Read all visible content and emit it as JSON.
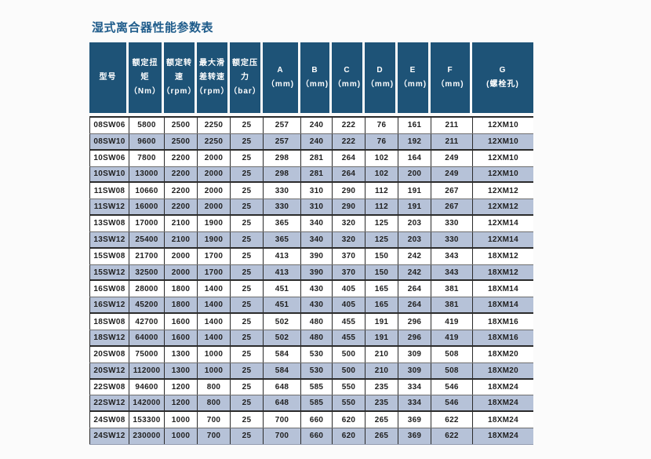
{
  "page": {
    "title": "湿式离合器性能参数表"
  },
  "colors": {
    "title": "#1f5c8b",
    "header-bg": "#1e5377",
    "header-text": "#ffffff",
    "stripe": "#b6c2d8",
    "row-bg": "#ffffff",
    "border-dark": "#2b2b2b",
    "border-light": "#6f6f6f",
    "cell-text": "#1f1f1f",
    "page-bg": "#fbfbfb"
  },
  "chart_data": {
    "type": "table",
    "title": "湿式离合器性能参数表",
    "columns": [
      "型号",
      "额定扭矩（Nm）",
      "额定转速（rpm）",
      "最大滑差转速（rpm）",
      "额定压力（bar）",
      "A（mm)",
      "B（mm)",
      "C（mm)",
      "D（mm)",
      "E（mm)",
      "F（mm)",
      "G(螺栓孔)"
    ],
    "rows_ref": "table.rows"
  },
  "table": {
    "header": [
      {
        "name": "model",
        "lines": [
          "型号"
        ]
      },
      {
        "name": "rated-torque",
        "lines": [
          "额定扭",
          "矩",
          "（Nm）"
        ]
      },
      {
        "name": "rated-speed",
        "lines": [
          "额定转",
          "速",
          "（rpm）"
        ]
      },
      {
        "name": "max-slip-speed",
        "lines": [
          "最大滑",
          "差转速",
          "（rpm）"
        ]
      },
      {
        "name": "rated-pressure",
        "lines": [
          "额定压",
          "力",
          "（bar）"
        ]
      },
      {
        "name": "dim-a",
        "lines": [
          "A",
          "（mm)"
        ]
      },
      {
        "name": "dim-b",
        "lines": [
          "B",
          "（mm)"
        ]
      },
      {
        "name": "dim-c",
        "lines": [
          "C",
          "（mm)"
        ]
      },
      {
        "name": "dim-d",
        "lines": [
          "D",
          "（mm)"
        ]
      },
      {
        "name": "dim-e",
        "lines": [
          "E",
          "（mm)"
        ]
      },
      {
        "name": "dim-f",
        "lines": [
          "F",
          "（mm)"
        ]
      },
      {
        "name": "dim-g",
        "lines": [
          "G",
          "(螺栓孔)"
        ]
      }
    ],
    "rows": [
      [
        "08SW06",
        "5800",
        "2500",
        "2250",
        "25",
        "257",
        "240",
        "222",
        "76",
        "161",
        "211",
        "12XM10"
      ],
      [
        "08SW10",
        "9600",
        "2500",
        "2250",
        "25",
        "257",
        "240",
        "222",
        "76",
        "192",
        "211",
        "12XM10"
      ],
      [
        "10SW06",
        "7800",
        "2200",
        "2000",
        "25",
        "298",
        "281",
        "264",
        "102",
        "164",
        "249",
        "12XM10"
      ],
      [
        "10SW10",
        "13000",
        "2200",
        "2000",
        "25",
        "298",
        "281",
        "264",
        "102",
        "200",
        "249",
        "12XM10"
      ],
      [
        "11SW08",
        "10660",
        "2200",
        "2000",
        "25",
        "330",
        "310",
        "290",
        "112",
        "191",
        "267",
        "12XM12"
      ],
      [
        "11SW12",
        "16000",
        "2200",
        "2000",
        "25",
        "330",
        "310",
        "290",
        "112",
        "191",
        "267",
        "12XM12"
      ],
      [
        "13SW08",
        "17000",
        "2100",
        "1900",
        "25",
        "365",
        "340",
        "320",
        "125",
        "203",
        "330",
        "12XM14"
      ],
      [
        "13SW12",
        "25400",
        "2100",
        "1900",
        "25",
        "365",
        "340",
        "320",
        "125",
        "203",
        "330",
        "12XM14"
      ],
      [
        "15SW08",
        "21700",
        "2000",
        "1700",
        "25",
        "413",
        "390",
        "370",
        "150",
        "242",
        "343",
        "18XM12"
      ],
      [
        "15SW12",
        "32500",
        "2000",
        "1700",
        "25",
        "413",
        "390",
        "370",
        "150",
        "242",
        "343",
        "18XM12"
      ],
      [
        "16SW08",
        "28000",
        "1800",
        "1400",
        "25",
        "451",
        "430",
        "405",
        "165",
        "264",
        "381",
        "18XM14"
      ],
      [
        "16SW12",
        "45200",
        "1800",
        "1400",
        "25",
        "451",
        "430",
        "405",
        "165",
        "264",
        "381",
        "18XM14"
      ],
      [
        "18SW08",
        "42700",
        "1600",
        "1400",
        "25",
        "502",
        "480",
        "455",
        "191",
        "296",
        "419",
        "18XM16"
      ],
      [
        "18SW12",
        "64000",
        "1600",
        "1400",
        "25",
        "502",
        "480",
        "455",
        "191",
        "296",
        "419",
        "18XM16"
      ],
      [
        "20SW08",
        "75000",
        "1300",
        "1000",
        "25",
        "584",
        "530",
        "500",
        "210",
        "309",
        "508",
        "18XM20"
      ],
      [
        "20SW12",
        "112000",
        "1300",
        "1000",
        "25",
        "584",
        "530",
        "500",
        "210",
        "309",
        "508",
        "18XM20"
      ],
      [
        "22SW08",
        "94600",
        "1200",
        "800",
        "25",
        "648",
        "585",
        "550",
        "235",
        "334",
        "546",
        "18XM24"
      ],
      [
        "22SW12",
        "142000",
        "1200",
        "800",
        "25",
        "648",
        "585",
        "550",
        "235",
        "334",
        "546",
        "18XM24"
      ],
      [
        "24SW08",
        "153300",
        "1000",
        "700",
        "25",
        "700",
        "660",
        "620",
        "265",
        "369",
        "622",
        "18XM24"
      ],
      [
        "24SW12",
        "230000",
        "1000",
        "700",
        "25",
        "700",
        "660",
        "620",
        "265",
        "369",
        "622",
        "18XM24"
      ]
    ]
  }
}
